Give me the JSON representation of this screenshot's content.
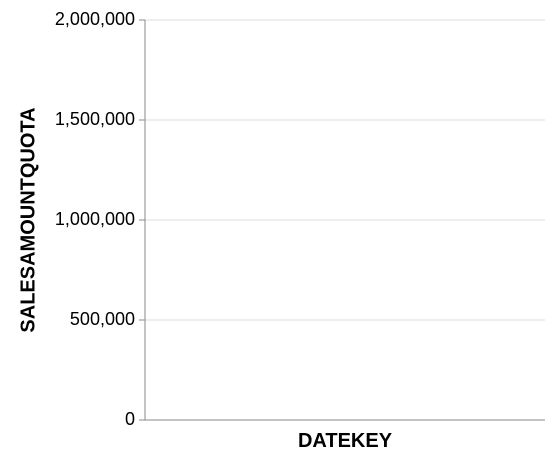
{
  "chart_data": {
    "type": "line",
    "title": "",
    "xlabel": "DATEKEY",
    "ylabel": "SALESAMOUNTQUOTA",
    "ylim": [
      0,
      2000000
    ],
    "y_ticks": [
      0,
      500000,
      1000000,
      1500000,
      2000000
    ],
    "y_tick_labels": [
      "0",
      "500,000",
      "1,000,000",
      "1,500,000",
      "2,000,000"
    ],
    "x": [],
    "series": [],
    "grid": true,
    "colors": {
      "grid": "#dddddd",
      "axis": "#888888",
      "text": "#000000"
    }
  }
}
